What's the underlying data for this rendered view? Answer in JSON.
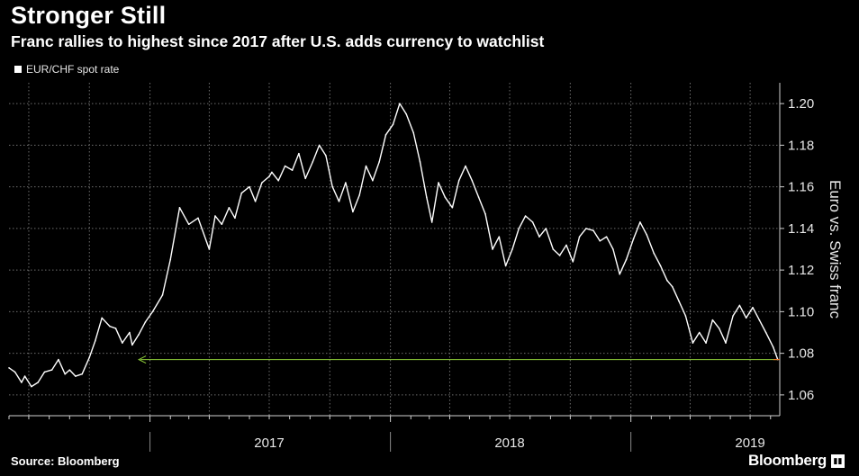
{
  "header": {
    "title": "Stronger Still",
    "subtitle": "Franc rallies to highest since 2017 after U.S. adds currency to watchlist"
  },
  "legend": {
    "label": "EUR/CHF spot rate"
  },
  "footer": {
    "source": "Source: Bloomberg",
    "brand": "Bloomberg"
  },
  "colors": {
    "background": "#000000",
    "line": "#ffffff",
    "grid": "#6e6e6e",
    "arrow": "#8fcf3a",
    "end_marker": "#e8742a"
  },
  "chart_data": {
    "type": "line",
    "title": "Stronger Still",
    "ylabel": "Euro vs. Swiss franc",
    "ylim": [
      1.05,
      1.21
    ],
    "yticks": [
      1.06,
      1.08,
      1.1,
      1.12,
      1.14,
      1.16,
      1.18,
      1.2
    ],
    "ytick_labels": [
      "1.06",
      "1.08",
      "1.10",
      "1.12",
      "1.14",
      "1.16",
      "1.18",
      "1.20"
    ],
    "xlim": [
      "2016-06-01",
      "2019-08-15"
    ],
    "year_labels": [
      {
        "label": "2017",
        "x": "2017-07-01"
      },
      {
        "label": "2018",
        "x": "2018-07-01"
      },
      {
        "label": "2019",
        "x": "2019-07-01"
      }
    ],
    "grid": true,
    "annotation": {
      "type": "arrow",
      "from": "2019-08-12",
      "to": "2016-12-15",
      "y": 1.077
    },
    "series": [
      {
        "name": "EUR/CHF spot rate",
        "x": [
          "2016-06-01",
          "2016-06-10",
          "2016-06-20",
          "2016-06-25",
          "2016-07-05",
          "2016-07-15",
          "2016-07-25",
          "2016-08-05",
          "2016-08-15",
          "2016-08-25",
          "2016-09-01",
          "2016-09-10",
          "2016-09-20",
          "2016-10-01",
          "2016-10-10",
          "2016-10-20",
          "2016-11-01",
          "2016-11-10",
          "2016-11-20",
          "2016-12-01",
          "2016-12-05",
          "2016-12-15",
          "2016-12-25",
          "2017-01-05",
          "2017-01-20",
          "2017-02-01",
          "2017-02-15",
          "2017-03-01",
          "2017-03-15",
          "2017-04-01",
          "2017-04-10",
          "2017-04-20",
          "2017-05-01",
          "2017-05-10",
          "2017-05-20",
          "2017-06-01",
          "2017-06-10",
          "2017-06-20",
          "2017-07-01",
          "2017-07-05",
          "2017-07-15",
          "2017-07-25",
          "2017-08-05",
          "2017-08-15",
          "2017-08-25",
          "2017-09-05",
          "2017-09-15",
          "2017-09-25",
          "2017-10-05",
          "2017-10-15",
          "2017-10-25",
          "2017-11-05",
          "2017-11-15",
          "2017-11-25",
          "2017-12-05",
          "2017-12-15",
          "2017-12-25",
          "2018-01-05",
          "2018-01-15",
          "2018-01-25",
          "2018-02-05",
          "2018-02-15",
          "2018-02-25",
          "2018-03-05",
          "2018-03-15",
          "2018-03-25",
          "2018-04-05",
          "2018-04-15",
          "2018-04-25",
          "2018-05-05",
          "2018-05-15",
          "2018-05-25",
          "2018-06-05",
          "2018-06-15",
          "2018-06-25",
          "2018-07-05",
          "2018-07-15",
          "2018-07-25",
          "2018-08-05",
          "2018-08-15",
          "2018-08-25",
          "2018-09-05",
          "2018-09-15",
          "2018-09-25",
          "2018-10-05",
          "2018-10-15",
          "2018-10-25",
          "2018-11-05",
          "2018-11-15",
          "2018-11-25",
          "2018-12-05",
          "2018-12-15",
          "2018-12-25",
          "2019-01-05",
          "2019-01-15",
          "2019-01-25",
          "2019-02-05",
          "2019-02-15",
          "2019-02-25",
          "2019-03-05",
          "2019-03-15",
          "2019-03-25",
          "2019-04-05",
          "2019-04-15",
          "2019-04-25",
          "2019-05-05",
          "2019-05-15",
          "2019-05-25",
          "2019-06-05",
          "2019-06-15",
          "2019-06-25",
          "2019-07-05",
          "2019-07-15",
          "2019-07-25",
          "2019-08-05",
          "2019-08-12"
        ],
        "y": [
          1.073,
          1.071,
          1.066,
          1.069,
          1.064,
          1.066,
          1.071,
          1.072,
          1.077,
          1.07,
          1.072,
          1.069,
          1.07,
          1.078,
          1.086,
          1.097,
          1.093,
          1.092,
          1.085,
          1.09,
          1.084,
          1.089,
          1.095,
          1.1,
          1.108,
          1.125,
          1.15,
          1.142,
          1.145,
          1.13,
          1.146,
          1.142,
          1.15,
          1.145,
          1.157,
          1.16,
          1.153,
          1.162,
          1.165,
          1.167,
          1.163,
          1.17,
          1.168,
          1.176,
          1.164,
          1.172,
          1.18,
          1.175,
          1.16,
          1.153,
          1.162,
          1.148,
          1.156,
          1.17,
          1.163,
          1.172,
          1.185,
          1.19,
          1.2,
          1.195,
          1.186,
          1.172,
          1.155,
          1.143,
          1.162,
          1.155,
          1.15,
          1.163,
          1.17,
          1.163,
          1.155,
          1.147,
          1.13,
          1.136,
          1.122,
          1.13,
          1.14,
          1.146,
          1.143,
          1.136,
          1.14,
          1.13,
          1.127,
          1.132,
          1.124,
          1.136,
          1.14,
          1.139,
          1.134,
          1.136,
          1.13,
          1.118,
          1.125,
          1.135,
          1.143,
          1.137,
          1.128,
          1.122,
          1.115,
          1.112,
          1.105,
          1.098,
          1.085,
          1.09,
          1.085,
          1.096,
          1.092,
          1.085,
          1.098,
          1.103,
          1.097,
          1.102,
          1.096,
          1.09,
          1.083,
          1.077
        ]
      }
    ]
  }
}
